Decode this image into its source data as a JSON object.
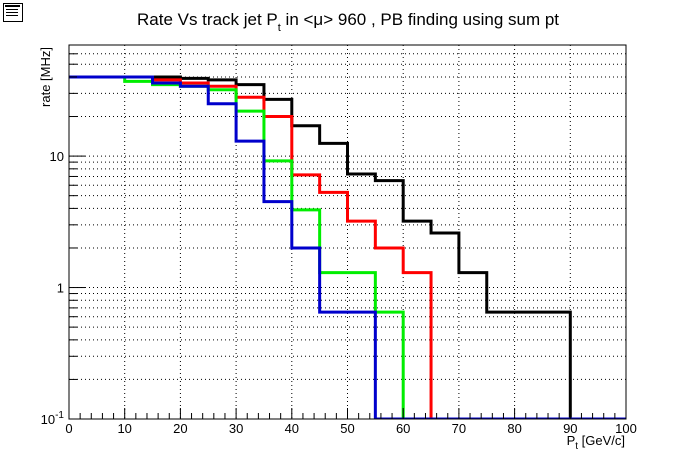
{
  "chart_data": {
    "type": "line",
    "title": "Rate Vs track jet P",
    "title_sub": "t",
    "title_rest": " in <μ> 960 , PB finding using sum pt",
    "xlabel": "P",
    "xlabel_sub": "t",
    "xlabel_rest": " [GeV/c]",
    "ylabel": "rate [MHz]",
    "xlim": [
      0,
      100
    ],
    "ylim": [
      0.1,
      70
    ],
    "yscale": "log",
    "grid": true,
    "x_ticks": [
      "0",
      "10",
      "20",
      "30",
      "40",
      "50",
      "60",
      "70",
      "80",
      "90",
      "100"
    ],
    "y_ticks": [
      {
        "value": 0.1,
        "base": "10",
        "exp": "-1"
      },
      {
        "value": 1,
        "label": "1"
      },
      {
        "value": 10,
        "label": "10"
      }
    ],
    "x": [
      0,
      5,
      10,
      15,
      20,
      25,
      30,
      35,
      40,
      45,
      50,
      55,
      60,
      65,
      70,
      75,
      80,
      85,
      90,
      95
    ],
    "series": [
      {
        "color": "#000000",
        "values": [
          40,
          40,
          40,
          40,
          39,
          38,
          35,
          27,
          17,
          12.5,
          7.3,
          6.5,
          3.2,
          2.6,
          1.3,
          0.65,
          0.65,
          0.65,
          0.1,
          0.1
        ]
      },
      {
        "color": "#ff0000",
        "values": [
          40,
          40,
          40,
          38,
          36,
          34,
          28,
          20,
          7.2,
          5.3,
          3.2,
          2.0,
          1.3,
          0.1,
          0.1,
          0.1,
          0.1,
          0.1,
          0.1,
          0.1
        ]
      },
      {
        "color": "#00ee00",
        "values": [
          40,
          40,
          37,
          35,
          34,
          32,
          22,
          9.2,
          3.9,
          1.3,
          1.3,
          0.65,
          0.1,
          0.1,
          0.1,
          0.1,
          0.1,
          0.1,
          0.1,
          0.1
        ]
      },
      {
        "color": "#0000cc",
        "values": [
          40,
          40,
          40,
          36,
          34,
          25,
          13,
          4.5,
          2.0,
          0.65,
          0.65,
          0.1,
          0.1,
          0.1,
          0.1,
          0.1,
          0.1,
          0.1,
          0.1,
          0.1
        ]
      }
    ]
  }
}
